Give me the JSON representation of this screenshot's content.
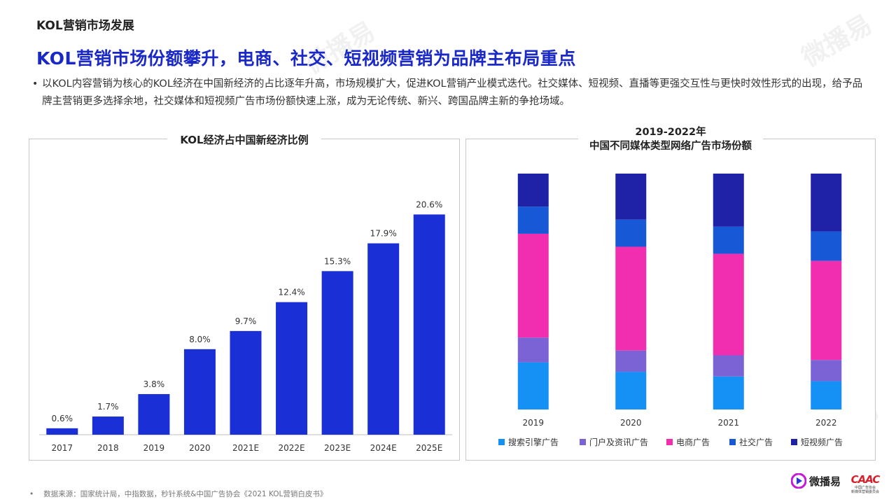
{
  "header": {
    "section_title": "KOL营销市场发展",
    "headline": "KOL营销市场份额攀升，电商、社交、短视频营销为品牌主布局重点",
    "bullet": "以KOL内容营销为核心的KOL经济在中国新经济的占比逐年升高，市场规模扩大，促进KOL营销产业模式迭代。社交媒体、短视频、直播等更强交互性与更快时效性形式的出现，给予品牌主营销更多选择余地，社交媒体和短视频广告市场份额快速上涨，成为无论传统、新兴、跨国品牌主新的争抢场域。"
  },
  "watermark_text": "微播易",
  "chart_data": [
    {
      "type": "bar",
      "title": "KOL经济占中国新经济比例",
      "categories": [
        "2017",
        "2018",
        "2019",
        "2020",
        "2021E",
        "2022E",
        "2023E",
        "2024E",
        "2025E"
      ],
      "values": [
        0.6,
        1.7,
        3.8,
        8.0,
        9.7,
        12.4,
        15.3,
        17.9,
        20.6
      ],
      "value_labels": [
        "0.6%",
        "1.7%",
        "3.8%",
        "8.0%",
        "9.7%",
        "12.4%",
        "15.3%",
        "17.9%",
        "20.6%"
      ],
      "ylim": [
        0,
        22
      ],
      "color": "#1a2fd6",
      "grid": false
    },
    {
      "type": "bar",
      "stacked": true,
      "percent": true,
      "title_line1": "2019-2022年",
      "title_line2": "中国不同媒体类型网络广告市场份额",
      "categories": [
        "2019",
        "2020",
        "2021",
        "2022"
      ],
      "series": [
        {
          "name": "搜索引擎广告",
          "color": "#1590f5",
          "values": [
            20,
            16,
            14,
            12
          ]
        },
        {
          "name": "门户及资讯广告",
          "color": "#7b63d6",
          "values": [
            10.5,
            9,
            9,
            9
          ]
        },
        {
          "name": "电商广告",
          "color": "#f22eb0",
          "values": [
            44,
            44,
            43,
            42
          ]
        },
        {
          "name": "社交广告",
          "color": "#1658d6",
          "values": [
            11.5,
            11.5,
            11.5,
            12.5
          ]
        },
        {
          "name": "短视频广告",
          "color": "#1f22a6",
          "values": [
            14,
            19.5,
            22.5,
            24.5
          ]
        }
      ],
      "ylim": [
        0,
        100
      ],
      "legend_position": "bottom",
      "grid": false
    }
  ],
  "footer": {
    "source": "数据来源：国家统计局，中指数据，秒针系统&中国广告协会《2021 KOL营销白皮书》"
  },
  "brand": {
    "logo_name": "微播易",
    "partner_logo": "CAAC",
    "partner_sub1": "中国广告协会",
    "partner_sub2": "新媒体营销委员会"
  }
}
